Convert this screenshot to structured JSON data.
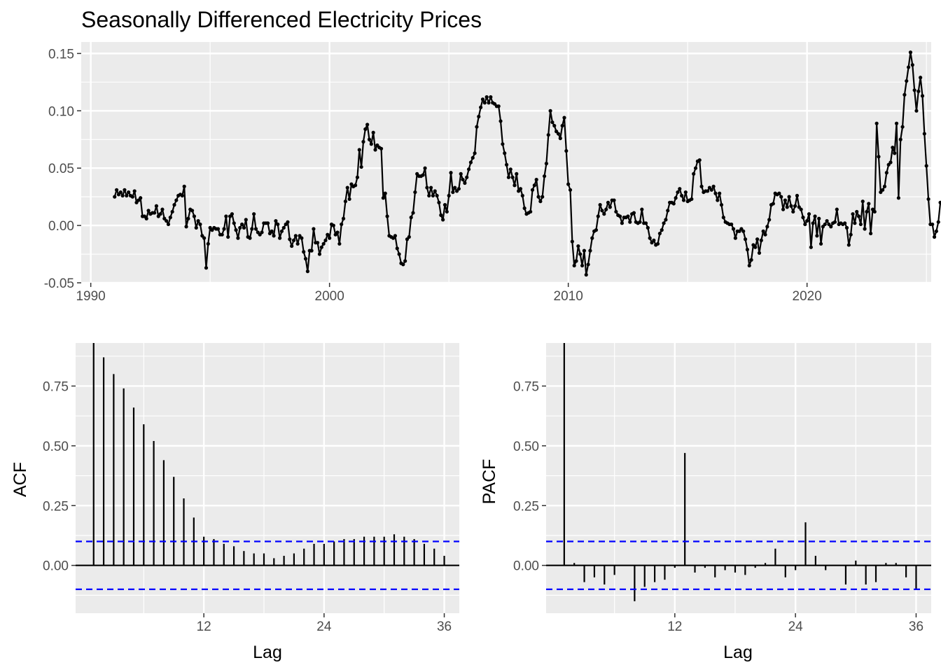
{
  "chart_data": [
    {
      "id": "ts",
      "type": "line",
      "title": "Seasonally Differenced Electricity Prices",
      "xlabel": "",
      "ylabel": "",
      "xlim": [
        1989.6,
        2025.2
      ],
      "ylim": [
        -0.05,
        0.16
      ],
      "x_ticks": [
        1990,
        2000,
        2010,
        2020
      ],
      "y_ticks": [
        -0.05,
        0.0,
        0.05,
        0.1,
        0.15
      ],
      "y_tick_labels": [
        "-0.05",
        "0.00",
        "0.05",
        "0.10",
        "0.15"
      ],
      "grid": true,
      "points_marker": true,
      "x_start": 1991.0,
      "x_step_months": 1,
      "line_color": "#000000",
      "y": [
        0.025,
        0.031,
        0.027,
        0.029,
        0.026,
        0.031,
        0.026,
        0.029,
        0.026,
        0.025,
        0.03,
        0.02,
        0.022,
        0.024,
        0.008,
        0.008,
        0.006,
        0.013,
        0.01,
        0.011,
        0.011,
        0.017,
        0.008,
        0.01,
        0.014,
        0.006,
        0.004,
        0.001,
        0.007,
        0.012,
        0.018,
        0.022,
        0.026,
        0.027,
        0.026,
        0.034,
        -0.001,
        0.006,
        0.014,
        0.013,
        0.008,
        -0.002,
        0.004,
        0.001,
        -0.009,
        -0.011,
        -0.037,
        -0.016,
        -0.002,
        -0.004,
        -0.002,
        -0.003,
        -0.003,
        -0.008,
        -0.008,
        -0.003,
        0.008,
        -0.01,
        0.008,
        0.01,
        0.002,
        -0.004,
        -0.011,
        -0.002,
        0.001,
        -0.002,
        0.005,
        -0.01,
        -0.011,
        -0.003,
        0.01,
        -0.003,
        -0.006,
        -0.008,
        -0.006,
        0.002,
        0.002,
        0.002,
        -0.007,
        -0.005,
        -0.009,
        0.004,
        0.001,
        -0.011,
        -0.005,
        -0.002,
        0.001,
        0.003,
        -0.012,
        -0.018,
        -0.013,
        -0.009,
        -0.016,
        -0.009,
        -0.011,
        -0.023,
        -0.029,
        -0.04,
        -0.022,
        -0.022,
        -0.003,
        -0.015,
        -0.015,
        -0.025,
        -0.019,
        -0.016,
        -0.013,
        -0.008,
        -0.011,
        0.001,
        0.0,
        -0.008,
        -0.006,
        -0.016,
        0.001,
        0.006,
        0.021,
        0.033,
        0.023,
        0.036,
        0.034,
        0.035,
        0.042,
        0.066,
        0.051,
        0.073,
        0.084,
        0.088,
        0.075,
        0.071,
        0.081,
        0.066,
        0.07,
        0.068,
        0.067,
        0.024,
        0.028,
        0.008,
        -0.009,
        -0.01,
        -0.011,
        -0.009,
        -0.02,
        -0.025,
        -0.033,
        -0.034,
        -0.031,
        -0.012,
        -0.01,
        0.007,
        0.011,
        0.029,
        0.045,
        0.043,
        0.043,
        0.044,
        0.05,
        0.033,
        0.026,
        0.033,
        0.026,
        0.03,
        0.026,
        0.02,
        0.009,
        0.005,
        0.018,
        0.012,
        0.026,
        0.046,
        0.029,
        0.033,
        0.03,
        0.032,
        0.045,
        0.04,
        0.037,
        0.042,
        0.049,
        0.055,
        0.059,
        0.063,
        0.086,
        0.095,
        0.103,
        0.11,
        0.107,
        0.112,
        0.107,
        0.112,
        0.107,
        0.106,
        0.104,
        0.104,
        0.091,
        0.071,
        0.063,
        0.053,
        0.042,
        0.049,
        0.042,
        0.035,
        0.045,
        0.03,
        0.032,
        0.026,
        0.015,
        0.01,
        0.011,
        0.012,
        0.031,
        0.035,
        0.04,
        0.025,
        0.021,
        0.025,
        0.043,
        0.054,
        0.079,
        0.1,
        0.09,
        0.087,
        0.082,
        0.08,
        0.076,
        0.087,
        0.094,
        0.065,
        0.036,
        0.031,
        -0.014,
        -0.035,
        -0.031,
        -0.018,
        -0.025,
        -0.035,
        -0.022,
        -0.043,
        -0.034,
        -0.022,
        -0.011,
        -0.005,
        -0.004,
        0.008,
        0.018,
        0.013,
        0.01,
        0.014,
        0.02,
        0.016,
        0.022,
        0.022,
        0.012,
        0.009,
        0.008,
        0.002,
        0.007,
        0.007,
        0.008,
        0.003,
        0.01,
        0.011,
        0.003,
        0.002,
        0.003,
        0.014,
        0.002,
        0.002,
        -0.002,
        -0.011,
        -0.015,
        -0.013,
        -0.017,
        -0.016,
        -0.007,
        -0.004,
        0.002,
        0.005,
        0.013,
        0.02,
        0.02,
        0.019,
        0.024,
        0.029,
        0.032,
        0.026,
        0.022,
        0.029,
        0.021,
        0.022,
        0.023,
        0.045,
        0.05,
        0.056,
        0.057,
        0.034,
        0.029,
        0.03,
        0.03,
        0.033,
        0.031,
        0.034,
        0.028,
        0.022,
        0.028,
        0.018,
        0.007,
        0.003,
        0.002,
        0.001,
        0.001,
        -0.003,
        -0.011,
        -0.005,
        -0.005,
        -0.003,
        -0.005,
        -0.012,
        -0.021,
        -0.035,
        -0.03,
        -0.017,
        -0.019,
        -0.012,
        -0.024,
        -0.013,
        -0.005,
        -0.008,
        -0.001,
        0.005,
        0.018,
        0.019,
        0.028,
        0.027,
        0.028,
        0.025,
        0.014,
        0.022,
        0.016,
        0.025,
        0.017,
        0.012,
        0.017,
        0.026,
        0.016,
        0.014,
        0.007,
        0.001,
        0.004,
        0.01,
        -0.019,
        0.002,
        0.008,
        -0.009,
        0.006,
        -0.016,
        -0.001,
        0.001,
        0.004,
        0.001,
        -0.001,
        0.002,
        0.003,
        0.014,
        0.001,
        0.002,
        0.001,
        0.002,
        -0.002,
        -0.017,
        -0.008,
        0.01,
        0.002,
        0.012,
        0.008,
        0.001,
        0.021,
        -0.003,
        0.012,
        0.019,
        -0.007,
        0.014,
        0.012,
        0.089,
        0.06,
        0.029,
        0.031,
        0.034,
        0.046,
        0.053,
        0.055,
        0.068,
        0.063,
        0.089,
        0.024,
        0.075,
        0.086,
        0.114,
        0.126,
        0.138,
        0.151,
        0.14,
        0.118,
        0.1,
        0.117,
        0.129,
        0.113,
        0.08,
        0.052,
        0.023,
        0.001,
        0.001,
        -0.01,
        -0.005,
        0.003,
        0.02
      ]
    },
    {
      "id": "acf",
      "type": "bar",
      "title": "",
      "xlabel": "Lag",
      "ylabel": "ACF",
      "xlim": [
        -0.8,
        37.5
      ],
      "ylim": [
        -0.2,
        0.93
      ],
      "x_ticks": [
        12,
        24,
        36
      ],
      "y_ticks": [
        0.0,
        0.25,
        0.5,
        0.75
      ],
      "y_tick_labels": [
        "0.00",
        "0.25",
        "0.50",
        "0.75"
      ],
      "grid": true,
      "confidence_bound": 0.1,
      "confidence_color": "#0000ff",
      "lags": [
        1,
        2,
        3,
        4,
        5,
        6,
        7,
        8,
        9,
        10,
        11,
        12,
        13,
        14,
        15,
        16,
        17,
        18,
        19,
        20,
        21,
        22,
        23,
        24,
        25,
        26,
        27,
        28,
        29,
        30,
        31,
        32,
        33,
        34,
        35,
        36
      ],
      "values": [
        0.93,
        0.87,
        0.8,
        0.74,
        0.66,
        0.59,
        0.52,
        0.44,
        0.37,
        0.28,
        0.2,
        0.12,
        0.11,
        0.09,
        0.08,
        0.06,
        0.05,
        0.05,
        0.03,
        0.04,
        0.05,
        0.07,
        0.09,
        0.09,
        0.1,
        0.11,
        0.11,
        0.12,
        0.12,
        0.12,
        0.13,
        0.12,
        0.11,
        0.09,
        0.07,
        0.04
      ]
    },
    {
      "id": "pacf",
      "type": "bar",
      "title": "",
      "xlabel": "Lag",
      "ylabel": "PACF",
      "xlim": [
        -0.8,
        37.5
      ],
      "ylim": [
        -0.2,
        0.93
      ],
      "x_ticks": [
        12,
        24,
        36
      ],
      "y_ticks": [
        0.0,
        0.25,
        0.5,
        0.75
      ],
      "y_tick_labels": [
        "0.00",
        "0.25",
        "0.50",
        "0.75"
      ],
      "grid": true,
      "confidence_bound": 0.1,
      "confidence_color": "#0000ff",
      "lags": [
        1,
        2,
        3,
        4,
        5,
        6,
        7,
        8,
        9,
        10,
        11,
        12,
        13,
        14,
        15,
        16,
        17,
        18,
        19,
        20,
        21,
        22,
        23,
        24,
        25,
        26,
        27,
        28,
        29,
        30,
        31,
        32,
        33,
        34,
        35,
        36
      ],
      "values": [
        0.93,
        0.01,
        -0.07,
        -0.05,
        -0.08,
        -0.04,
        0.0,
        -0.15,
        -0.09,
        -0.07,
        -0.06,
        -0.01,
        0.47,
        -0.03,
        -0.01,
        -0.05,
        -0.02,
        -0.03,
        -0.04,
        -0.01,
        0.01,
        0.07,
        -0.05,
        -0.02,
        0.18,
        0.04,
        -0.02,
        0.0,
        -0.08,
        0.02,
        -0.08,
        -0.07,
        0.01,
        0.01,
        -0.05,
        -0.1
      ]
    }
  ]
}
